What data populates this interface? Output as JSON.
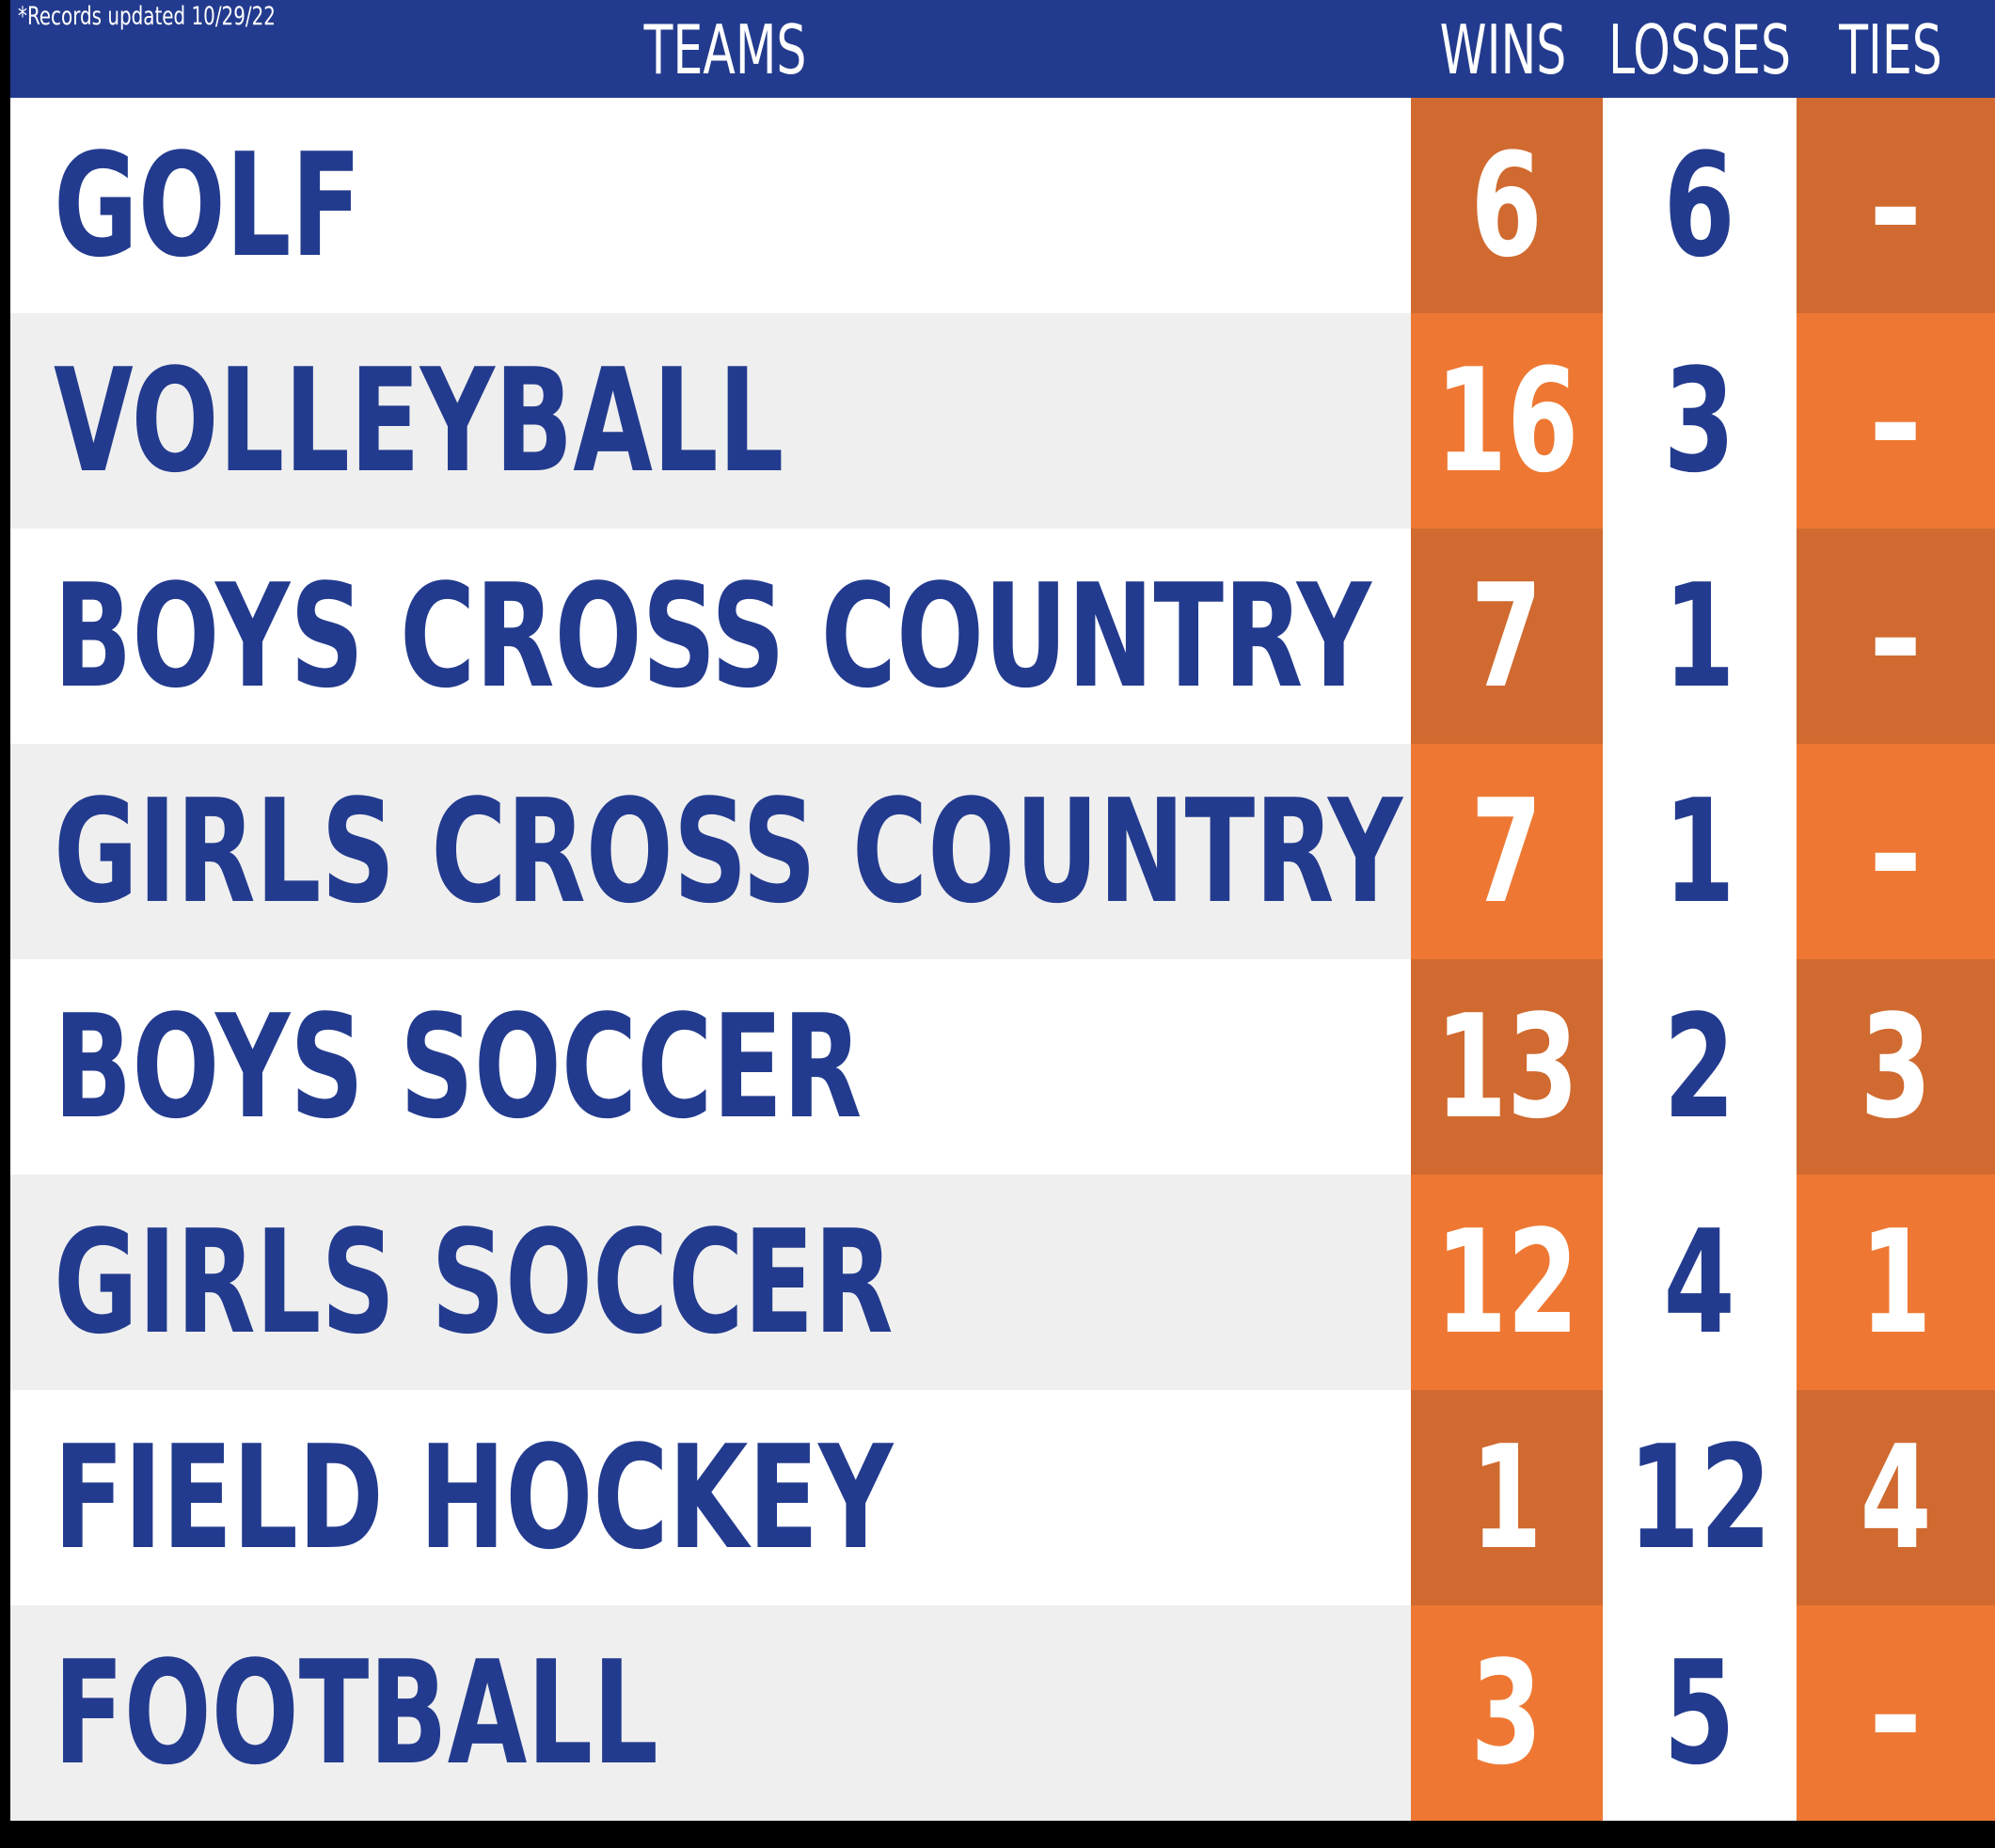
{
  "header": {
    "note": "*Records updated 10/29/22",
    "teams_label": "TEAMS",
    "wins_label": "WINS",
    "losses_label": "LOSSES",
    "ties_label": "TIES"
  },
  "colors": {
    "navy": "#233b8e",
    "orange_dark": "#d06a30",
    "orange_light": "#ee7833",
    "row_alt": "#efefef"
  },
  "rows": [
    {
      "team": "GOLF",
      "wins": "6",
      "losses": "6",
      "ties": "–"
    },
    {
      "team": "VOLLEYBALL",
      "wins": "16",
      "losses": "3",
      "ties": "–"
    },
    {
      "team": "BOYS CROSS COUNTRY",
      "wins": "7",
      "losses": "1",
      "ties": "–"
    },
    {
      "team": "GIRLS CROSS COUNTRY",
      "wins": "7",
      "losses": "1",
      "ties": "–"
    },
    {
      "team": "BOYS SOCCER",
      "wins": "13",
      "losses": "2",
      "ties": "3"
    },
    {
      "team": "GIRLS SOCCER",
      "wins": "12",
      "losses": "4",
      "ties": "1"
    },
    {
      "team": "FIELD HOCKEY",
      "wins": "1",
      "losses": "12",
      "ties": "4"
    },
    {
      "team": "FOOTBALL",
      "wins": "3",
      "losses": "5",
      "ties": "–"
    }
  ]
}
